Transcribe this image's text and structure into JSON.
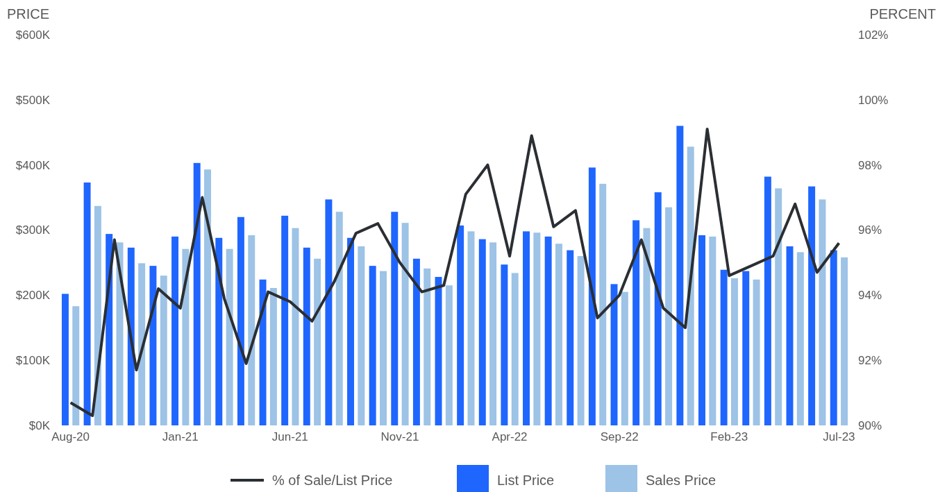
{
  "chart_data": {
    "type": "bar",
    "ylabel": "PRICE",
    "y2label": "PERCENT",
    "categories": [
      "Aug-20",
      null,
      null,
      null,
      null,
      "Jan-21",
      null,
      null,
      null,
      null,
      "Jun-21",
      null,
      null,
      null,
      null,
      "Nov-21",
      null,
      null,
      null,
      null,
      "Apr-22",
      null,
      null,
      null,
      null,
      "Sep-22",
      null,
      null,
      null,
      null,
      "Feb-23",
      null,
      null,
      null,
      null,
      "Jul-23"
    ],
    "series": [
      {
        "name": "% of Sale/List Price",
        "type": "line",
        "axis": "y2",
        "color": "#2b2f33",
        "values": [
          90.7,
          90.3,
          95.7,
          91.7,
          94.2,
          93.6,
          97.0,
          93.9,
          91.9,
          94.1,
          93.8,
          93.2,
          94.4,
          95.9,
          96.2,
          95.0,
          94.1,
          94.3,
          97.1,
          98.0,
          95.2,
          98.9,
          96.1,
          96.6,
          93.3,
          94.0,
          95.7,
          93.6,
          93.0,
          99.1,
          94.6,
          94.9,
          95.2,
          96.8,
          94.7,
          95.6
        ]
      },
      {
        "name": "List Price",
        "color": "#1f66ff",
        "values": [
          202,
          373,
          294,
          273,
          245,
          290,
          403,
          288,
          320,
          224,
          322,
          273,
          347,
          288,
          245,
          328,
          256,
          228,
          307,
          286,
          247,
          298,
          290,
          269,
          396,
          217,
          315,
          358,
          460,
          292,
          239,
          237,
          382,
          275,
          367,
          269
        ]
      },
      {
        "name": "Sales Price",
        "color": "#9dc3e6",
        "values": [
          183,
          337,
          281,
          249,
          230,
          271,
          393,
          271,
          292,
          211,
          303,
          256,
          328,
          275,
          237,
          311,
          241,
          215,
          298,
          281,
          234,
          296,
          279,
          260,
          371,
          205,
          303,
          335,
          428,
          290,
          226,
          224,
          364,
          266,
          347,
          258
        ]
      }
    ],
    "ylim": [
      0,
      600
    ],
    "yticks": [
      {
        "value": 0,
        "label": "$0K"
      },
      {
        "value": 100,
        "label": "$100K"
      },
      {
        "value": 200,
        "label": "$200K"
      },
      {
        "value": 300,
        "label": "$300K"
      },
      {
        "value": 400,
        "label": "$400K"
      },
      {
        "value": 500,
        "label": "$500K"
      },
      {
        "value": 600,
        "label": "$600K"
      }
    ],
    "y2lim": [
      90,
      102
    ],
    "y2ticks": [
      {
        "value": 90,
        "label": "90%"
      },
      {
        "value": 92,
        "label": "92%"
      },
      {
        "value": 94,
        "label": "94%"
      },
      {
        "value": 96,
        "label": "96%"
      },
      {
        "value": 98,
        "label": "98%"
      },
      {
        "value": 100,
        "label": "100%"
      },
      {
        "value": 102,
        "label": "102%"
      }
    ],
    "legend": "bottom",
    "grid": false,
    "line_style": "solid",
    "marker": "none"
  }
}
